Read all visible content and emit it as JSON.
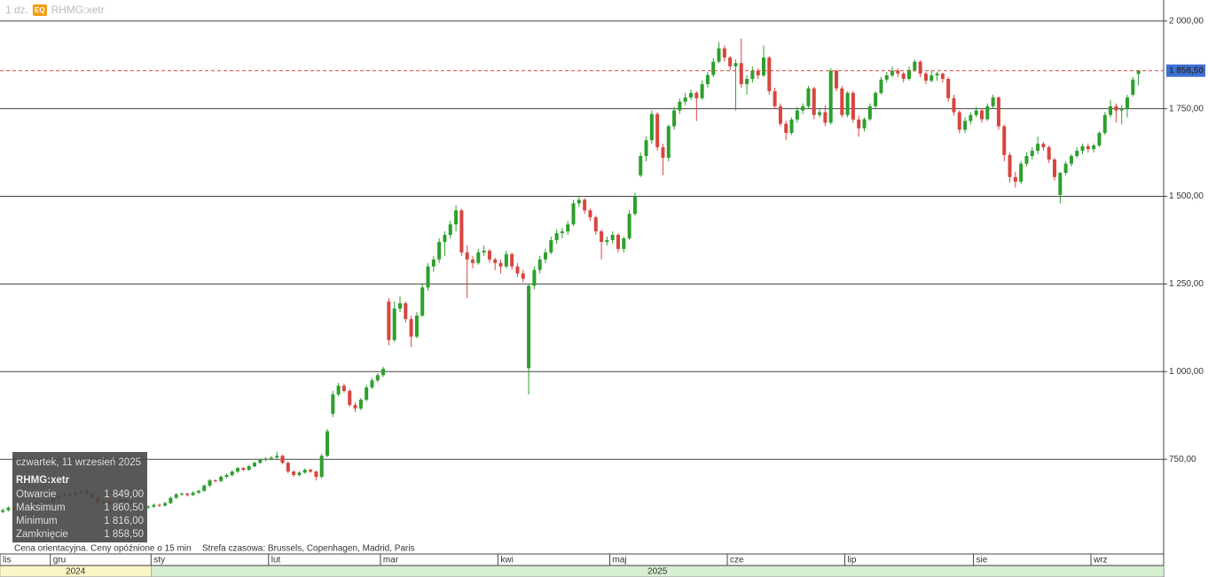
{
  "chart_data": {
    "type": "candlestick",
    "header": {
      "interval": "1 dz.",
      "badge": "EQ",
      "symbol": "RHMG:xetr"
    },
    "note": "Cena orientacyjna. Ceny opóźnione o 15 min",
    "timezone": "Strefa czasowa: Brussels, Copenhagen, Madrid, Paris",
    "up_color": "#2ca02c",
    "down_color": "#d9453f",
    "xlim": [
      0,
      208
    ],
    "xticks": [
      {
        "value": 0,
        "label": "lis"
      },
      {
        "value": 9,
        "label": "gru"
      },
      {
        "value": 27,
        "label": "sty"
      },
      {
        "value": 48,
        "label": "lut"
      },
      {
        "value": 68,
        "label": "mar"
      },
      {
        "value": 89,
        "label": "kwi"
      },
      {
        "value": 109,
        "label": "maj"
      },
      {
        "value": 130,
        "label": "cze"
      },
      {
        "value": 151,
        "label": "lip"
      },
      {
        "value": 174,
        "label": "sie"
      },
      {
        "value": 195,
        "label": "wrz"
      }
    ],
    "year_bands": [
      {
        "label": "2024",
        "from": 0,
        "to": 27,
        "color": "#fcf6c6"
      },
      {
        "label": "2025",
        "from": 27,
        "to": 208,
        "color": "#d6efd0"
      }
    ],
    "ylim": [
      480,
      2060
    ],
    "yticks": [
      {
        "value": 750,
        "label": "750,00"
      },
      {
        "value": 1000,
        "label": "1 000,00"
      },
      {
        "value": 1250,
        "label": "1 250,00"
      },
      {
        "value": 1500,
        "label": "1 500,00"
      },
      {
        "value": 1750,
        "label": "1 750,00"
      },
      {
        "value": 2000,
        "label": "2 000,00"
      }
    ],
    "grid": true,
    "last_price": {
      "value": 1858.5,
      "label": "1 858,50",
      "color": "#d9453f",
      "label_color": "#3d6fd6"
    },
    "tooltip": {
      "date": "czwartek, 11 wrzesień 2025",
      "symbol": "RHMG:xetr",
      "rows": [
        {
          "name": "Otwarcie",
          "value": {
            "value": 1849,
            "label": "1 849,00"
          }
        },
        {
          "name": "Maksimum",
          "value": {
            "value": 1860.5,
            "label": "1 860,50"
          }
        },
        {
          "name": "Minimum",
          "value": {
            "value": 1816,
            "label": "1 816,00"
          }
        },
        {
          "name": "Zamknięcie",
          "value": {
            "value": 1858.5,
            "label": "1 858,50"
          }
        }
      ]
    },
    "candles": [
      [
        600,
        610,
        596,
        605
      ],
      [
        605,
        616,
        601,
        612
      ],
      [
        612,
        616,
        604,
        608
      ],
      [
        608,
        619,
        605,
        615
      ],
      [
        615,
        624,
        612,
        620
      ],
      [
        620,
        624,
        614,
        618
      ],
      [
        618,
        629,
        615,
        625
      ],
      [
        625,
        634,
        621,
        630
      ],
      [
        630,
        633,
        623,
        628
      ],
      [
        628,
        644,
        625,
        640
      ],
      [
        640,
        649,
        636,
        645
      ],
      [
        645,
        654,
        641,
        650
      ],
      [
        650,
        655,
        644,
        648
      ],
      [
        648,
        659,
        645,
        655
      ],
      [
        655,
        664,
        651,
        660
      ],
      [
        660,
        663,
        648,
        652
      ],
      [
        652,
        656,
        636,
        640
      ],
      [
        640,
        644,
        620,
        625
      ],
      [
        625,
        634,
        621,
        630
      ],
      [
        630,
        633,
        618,
        622
      ],
      [
        622,
        632,
        619,
        628
      ],
      [
        628,
        639,
        625,
        635
      ],
      [
        635,
        638,
        626,
        630
      ],
      [
        630,
        634,
        621,
        625
      ],
      [
        625,
        629,
        614,
        618
      ],
      [
        618,
        621,
        608,
        612
      ],
      [
        612,
        619,
        608,
        615
      ],
      [
        615,
        624,
        611,
        620
      ],
      [
        620,
        623,
        614,
        618
      ],
      [
        618,
        629,
        615,
        625
      ],
      [
        625,
        644,
        622,
        640
      ],
      [
        640,
        654,
        637,
        650
      ],
      [
        650,
        656,
        646,
        652
      ],
      [
        652,
        655,
        644,
        648
      ],
      [
        648,
        659,
        645,
        655
      ],
      [
        655,
        664,
        651,
        660
      ],
      [
        660,
        679,
        657,
        675
      ],
      [
        675,
        694,
        671,
        690
      ],
      [
        690,
        693,
        684,
        688
      ],
      [
        688,
        704,
        685,
        700
      ],
      [
        700,
        709,
        696,
        705
      ],
      [
        705,
        719,
        701,
        715
      ],
      [
        715,
        729,
        711,
        725
      ],
      [
        725,
        728,
        716,
        720
      ],
      [
        720,
        734,
        717,
        730
      ],
      [
        730,
        744,
        727,
        740
      ],
      [
        740,
        752,
        737,
        748
      ],
      [
        748,
        756,
        744,
        752
      ],
      [
        752,
        759,
        748,
        755
      ],
      [
        755,
        772,
        752,
        760
      ],
      [
        760,
        763,
        736,
        740
      ],
      [
        740,
        744,
        710,
        715
      ],
      [
        715,
        718,
        700,
        705
      ],
      [
        705,
        716,
        701,
        712
      ],
      [
        712,
        724,
        709,
        720
      ],
      [
        720,
        723,
        711,
        715
      ],
      [
        715,
        718,
        690,
        700
      ],
      [
        700,
        765,
        695,
        760
      ],
      [
        760,
        836,
        756,
        830
      ],
      [
        880,
        945,
        870,
        935
      ],
      [
        935,
        968,
        930,
        960
      ],
      [
        960,
        966,
        940,
        945
      ],
      [
        945,
        950,
        900,
        905
      ],
      [
        905,
        912,
        885,
        895
      ],
      [
        895,
        925,
        890,
        920
      ],
      [
        920,
        962,
        915,
        955
      ],
      [
        955,
        982,
        950,
        975
      ],
      [
        975,
        996,
        970,
        990
      ],
      [
        990,
        1014,
        985,
        1008
      ],
      [
        1200,
        1210,
        1075,
        1090
      ],
      [
        1090,
        1200,
        1085,
        1180
      ],
      [
        1180,
        1215,
        1170,
        1195
      ],
      [
        1195,
        1200,
        1140,
        1150
      ],
      [
        1150,
        1160,
        1070,
        1100
      ],
      [
        1100,
        1170,
        1095,
        1160
      ],
      [
        1160,
        1250,
        1155,
        1240
      ],
      [
        1240,
        1310,
        1230,
        1300
      ],
      [
        1300,
        1330,
        1285,
        1320
      ],
      [
        1320,
        1380,
        1310,
        1370
      ],
      [
        1370,
        1400,
        1330,
        1390
      ],
      [
        1390,
        1430,
        1380,
        1420
      ],
      [
        1420,
        1475,
        1400,
        1460
      ],
      [
        1460,
        1465,
        1330,
        1340
      ],
      [
        1340,
        1360,
        1210,
        1320
      ],
      [
        1320,
        1330,
        1295,
        1310
      ],
      [
        1310,
        1350,
        1305,
        1340
      ],
      [
        1340,
        1360,
        1330,
        1345
      ],
      [
        1345,
        1350,
        1310,
        1320
      ],
      [
        1320,
        1325,
        1290,
        1310
      ],
      [
        1310,
        1320,
        1280,
        1300
      ],
      [
        1300,
        1345,
        1295,
        1335
      ],
      [
        1335,
        1340,
        1290,
        1300
      ],
      [
        1300,
        1310,
        1270,
        1280
      ],
      [
        1280,
        1290,
        1255,
        1265
      ],
      [
        1010,
        1250,
        935,
        1245
      ],
      [
        1245,
        1300,
        1235,
        1290
      ],
      [
        1290,
        1330,
        1280,
        1320
      ],
      [
        1320,
        1350,
        1310,
        1340
      ],
      [
        1340,
        1385,
        1335,
        1375
      ],
      [
        1375,
        1405,
        1365,
        1395
      ],
      [
        1395,
        1410,
        1380,
        1400
      ],
      [
        1400,
        1430,
        1390,
        1420
      ],
      [
        1420,
        1490,
        1415,
        1480
      ],
      [
        1480,
        1500,
        1470,
        1490
      ],
      [
        1490,
        1495,
        1450,
        1460
      ],
      [
        1460,
        1465,
        1430,
        1440
      ],
      [
        1440,
        1445,
        1390,
        1400
      ],
      [
        1400,
        1405,
        1320,
        1370
      ],
      [
        1370,
        1385,
        1360,
        1375
      ],
      [
        1375,
        1400,
        1365,
        1390
      ],
      [
        1390,
        1395,
        1340,
        1350
      ],
      [
        1350,
        1385,
        1340,
        1380
      ],
      [
        1380,
        1460,
        1375,
        1450
      ],
      [
        1450,
        1510,
        1445,
        1500
      ],
      [
        1560,
        1625,
        1555,
        1615
      ],
      [
        1615,
        1670,
        1600,
        1660
      ],
      [
        1660,
        1745,
        1650,
        1735
      ],
      [
        1735,
        1740,
        1630,
        1640
      ],
      [
        1640,
        1650,
        1560,
        1610
      ],
      [
        1610,
        1705,
        1600,
        1700
      ],
      [
        1700,
        1755,
        1690,
        1745
      ],
      [
        1745,
        1780,
        1735,
        1770
      ],
      [
        1770,
        1795,
        1760,
        1782
      ],
      [
        1782,
        1805,
        1775,
        1795
      ],
      [
        1795,
        1800,
        1715,
        1780
      ],
      [
        1780,
        1830,
        1775,
        1820
      ],
      [
        1820,
        1855,
        1810,
        1846
      ],
      [
        1846,
        1895,
        1840,
        1884
      ],
      [
        1884,
        1940,
        1880,
        1922
      ],
      [
        1922,
        1930,
        1885,
        1896
      ],
      [
        1896,
        1900,
        1860,
        1871
      ],
      [
        1871,
        1890,
        1745,
        1880
      ],
      [
        1880,
        1950,
        1810,
        1820
      ],
      [
        1820,
        1845,
        1790,
        1835
      ],
      [
        1835,
        1870,
        1825,
        1858
      ],
      [
        1858,
        1865,
        1835,
        1845
      ],
      [
        1845,
        1930,
        1840,
        1896
      ],
      [
        1896,
        1900,
        1790,
        1800
      ],
      [
        1800,
        1810,
        1750,
        1757
      ],
      [
        1757,
        1765,
        1700,
        1707
      ],
      [
        1707,
        1715,
        1660,
        1681
      ],
      [
        1681,
        1725,
        1675,
        1719
      ],
      [
        1719,
        1755,
        1710,
        1745
      ],
      [
        1745,
        1765,
        1735,
        1757
      ],
      [
        1757,
        1815,
        1750,
        1808
      ],
      [
        1808,
        1812,
        1720,
        1732
      ],
      [
        1732,
        1750,
        1725,
        1740
      ],
      [
        1740,
        1760,
        1700,
        1710
      ],
      [
        1710,
        1865,
        1705,
        1858
      ],
      [
        1858,
        1860,
        1800,
        1808
      ],
      [
        1808,
        1815,
        1725,
        1732
      ],
      [
        1732,
        1800,
        1725,
        1795
      ],
      [
        1795,
        1800,
        1710,
        1719
      ],
      [
        1719,
        1730,
        1670,
        1694
      ],
      [
        1694,
        1725,
        1685,
        1720
      ],
      [
        1720,
        1765,
        1715,
        1757
      ],
      [
        1757,
        1800,
        1750,
        1795
      ],
      [
        1795,
        1840,
        1790,
        1833
      ],
      [
        1833,
        1855,
        1825,
        1845
      ],
      [
        1845,
        1870,
        1840,
        1858
      ],
      [
        1858,
        1865,
        1840,
        1850
      ],
      [
        1850,
        1855,
        1825,
        1835
      ],
      [
        1835,
        1870,
        1830,
        1860
      ],
      [
        1860,
        1890,
        1855,
        1884
      ],
      [
        1884,
        1888,
        1840,
        1850
      ],
      [
        1850,
        1855,
        1820,
        1830
      ],
      [
        1830,
        1860,
        1825,
        1845
      ],
      [
        1845,
        1855,
        1830,
        1850
      ],
      [
        1850,
        1852,
        1825,
        1835
      ],
      [
        1835,
        1840,
        1770,
        1780
      ],
      [
        1780,
        1790,
        1730,
        1740
      ],
      [
        1740,
        1745,
        1680,
        1690
      ],
      [
        1690,
        1725,
        1680,
        1715
      ],
      [
        1715,
        1740,
        1705,
        1732
      ],
      [
        1732,
        1755,
        1725,
        1745
      ],
      [
        1745,
        1750,
        1710,
        1720
      ],
      [
        1720,
        1765,
        1715,
        1757
      ],
      [
        1757,
        1790,
        1750,
        1782
      ],
      [
        1782,
        1785,
        1690,
        1700
      ],
      [
        1700,
        1705,
        1600,
        1618
      ],
      [
        1618,
        1625,
        1540,
        1555
      ],
      [
        1555,
        1570,
        1525,
        1542
      ],
      [
        1542,
        1600,
        1535,
        1593
      ],
      [
        1593,
        1625,
        1585,
        1615
      ],
      [
        1615,
        1640,
        1605,
        1630
      ],
      [
        1630,
        1670,
        1620,
        1650
      ],
      [
        1650,
        1655,
        1630,
        1640
      ],
      [
        1640,
        1645,
        1595,
        1605
      ],
      [
        1605,
        1610,
        1545,
        1555
      ],
      [
        1504,
        1570,
        1480,
        1567
      ],
      [
        1567,
        1600,
        1560,
        1593
      ],
      [
        1593,
        1620,
        1585,
        1615
      ],
      [
        1615,
        1640,
        1610,
        1630
      ],
      [
        1630,
        1650,
        1620,
        1643
      ],
      [
        1643,
        1650,
        1625,
        1635
      ],
      [
        1635,
        1650,
        1625,
        1645
      ],
      [
        1645,
        1685,
        1640,
        1681
      ],
      [
        1681,
        1740,
        1675,
        1732
      ],
      [
        1732,
        1775,
        1725,
        1757
      ],
      [
        1757,
        1765,
        1710,
        1745
      ],
      [
        1745,
        1760,
        1705,
        1750
      ],
      [
        1750,
        1790,
        1725,
        1782
      ],
      [
        1790,
        1840,
        1785,
        1833
      ],
      [
        1849,
        1860.5,
        1816,
        1858.5
      ]
    ]
  }
}
